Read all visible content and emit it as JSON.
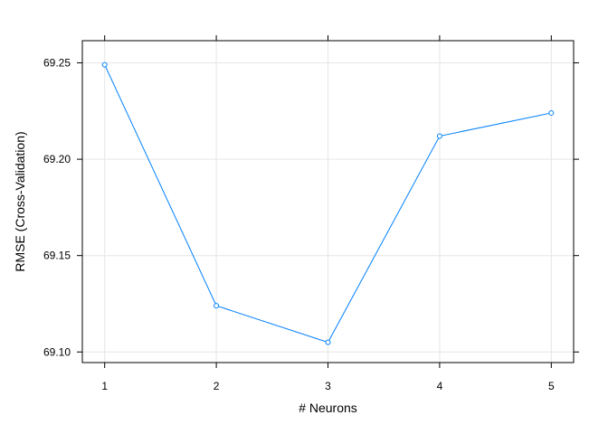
{
  "chart_data": {
    "type": "line",
    "xlabel": "# Neurons",
    "ylabel": "RMSE (Cross-Validation)",
    "x": [
      1,
      2,
      3,
      4,
      5
    ],
    "series": [
      {
        "values": [
          69.249,
          69.124,
          69.105,
          69.212,
          69.224
        ]
      }
    ],
    "xticks": [
      "1",
      "2",
      "3",
      "4",
      "5"
    ],
    "yticks": [
      "69.10",
      "69.15",
      "69.20",
      "69.25"
    ],
    "xlim": [
      0.8,
      5.2
    ],
    "ylim": [
      69.0945,
      69.2615
    ],
    "grid": true,
    "colors": {
      "line": "#0080ff",
      "grid": "#e6e6e6",
      "frame": "#000000"
    }
  }
}
